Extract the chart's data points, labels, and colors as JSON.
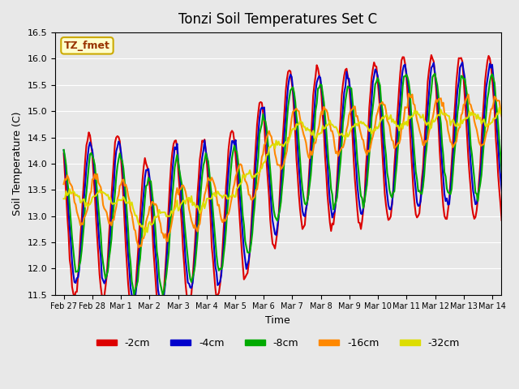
{
  "title": "Tonzi Soil Temperatures Set C",
  "xlabel": "Time",
  "ylabel": "Soil Temperature (C)",
  "ylim": [
    11.5,
    16.5
  ],
  "background_color": "#e8e8e8",
  "plot_bg_color": "#e8e8e8",
  "legend_label": "TZ_fmet",
  "legend_bg": "#ffffcc",
  "legend_border": "#ccaa00",
  "series": [
    {
      "label": "-2cm",
      "color": "#dd0000",
      "lw": 1.5
    },
    {
      "label": "-4cm",
      "color": "#0000cc",
      "lw": 1.5
    },
    {
      "label": "-8cm",
      "color": "#00aa00",
      "lw": 1.5
    },
    {
      "label": "-16cm",
      "color": "#ff8800",
      "lw": 1.5
    },
    {
      "label": "-32cm",
      "color": "#dddd00",
      "lw": 1.5
    }
  ],
  "xtick_labels": [
    "Feb 27",
    "Feb 28",
    "Mar 1",
    "Mar 2",
    "Mar 3",
    "Mar 4",
    "Mar 5",
    "Mar 6",
    "Mar 7",
    "Mar 8",
    "Mar 9",
    "Mar 10",
    "Mar 11",
    "Mar 12",
    "Mar 13",
    "Mar 14"
  ],
  "n_days": 16,
  "pts_per_day": 24
}
